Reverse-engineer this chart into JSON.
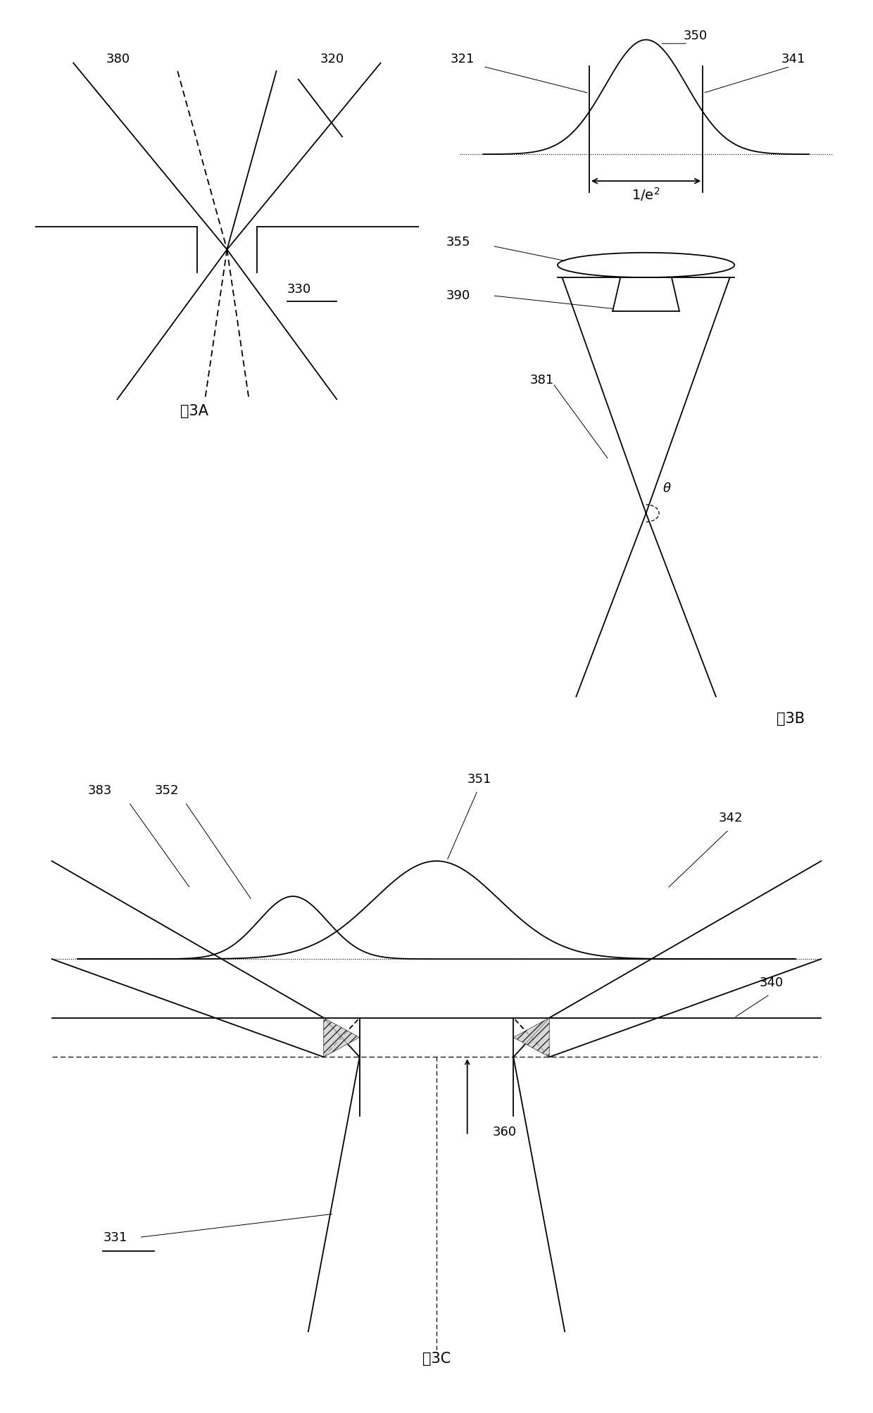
{
  "fig_width": 12.4,
  "fig_height": 20.07,
  "bg_color": "#ffffff",
  "lc": "#000000",
  "lw": 1.3,
  "fs_label": 13,
  "fs_caption": 15,
  "fig3A_caption": "图3A",
  "fig3B_caption": "图3B",
  "fig3C_caption": "图3C"
}
